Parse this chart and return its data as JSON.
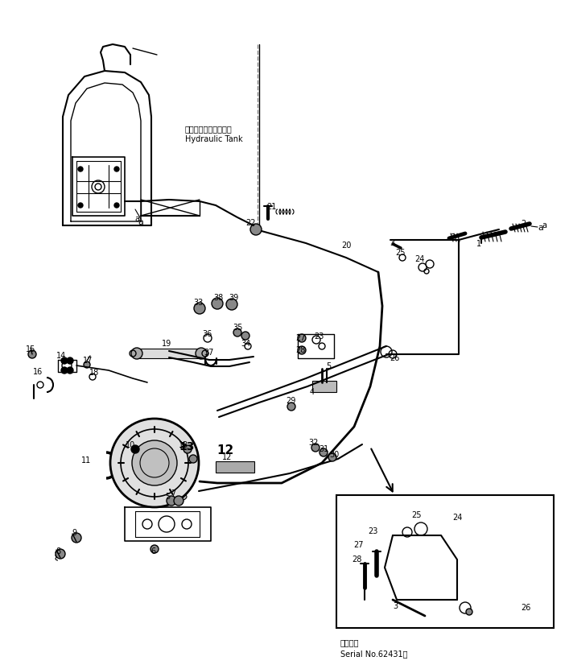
{
  "fig_width": 7.07,
  "fig_height": 8.31,
  "dpi": 100,
  "bg_color": "#ffffff",
  "labels": {
    "hydraulic_tank_jp": "ハイドロリックタンク",
    "hydraulic_tank_en": "Hydraulic Tank",
    "serial_jp": "適用号機",
    "serial_en": "Serial No.62431～"
  }
}
